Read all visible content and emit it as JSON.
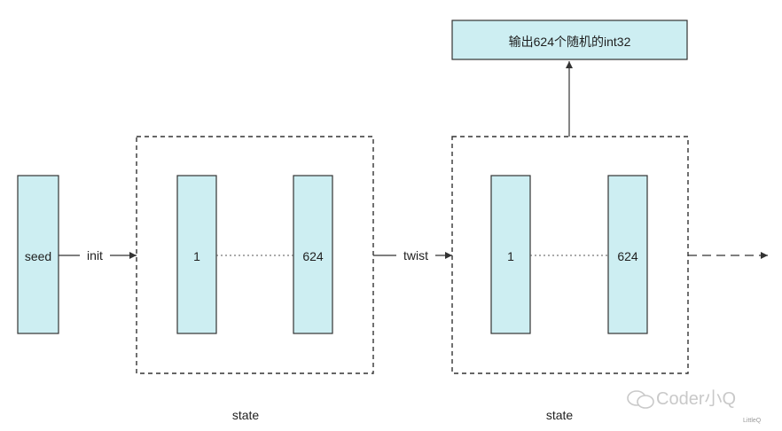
{
  "seed_label": "seed",
  "init_label": "init",
  "twist_label": "twist",
  "output_label": "输出624个随机的int32",
  "state_groups": [
    {
      "caption": "state",
      "first_label": "1",
      "last_label": "624"
    },
    {
      "caption": "state",
      "first_label": "1",
      "last_label": "624"
    }
  ],
  "watermark": {
    "text": "Coder小Q",
    "subtext": "LittleQ"
  },
  "colors": {
    "fill": "#cdeef2",
    "stroke": "#333333",
    "line": "#333333"
  }
}
